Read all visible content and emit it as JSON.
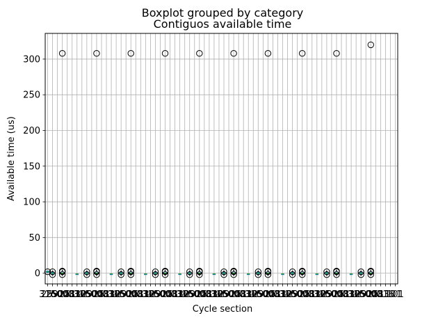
{
  "chart_data": {
    "type": "boxplot",
    "suptitle": "Boxplot grouped by category",
    "title": "Contiguos available time",
    "xlabel": "Cycle section",
    "ylabel": "Available time (us)",
    "ylim": [
      -15,
      336
    ],
    "y_ticks": [
      0,
      50,
      100,
      150,
      200,
      250,
      300
    ],
    "grid": true,
    "x_tick_labels": [
      "316",
      "2591",
      "2500",
      "5000",
      "251",
      "283",
      "316",
      "316",
      "1291",
      "2500",
      "5000",
      "251",
      "283",
      "316",
      "316",
      "1291",
      "2500",
      "5000",
      "251",
      "283",
      "316",
      "316",
      "1291",
      "2500",
      "5000",
      "251",
      "283",
      "316",
      "316",
      "1291",
      "2500",
      "5000",
      "251",
      "283",
      "316",
      "316",
      "1291",
      "2500",
      "5000",
      "251",
      "283",
      "316",
      "316",
      "1291",
      "2500",
      "5000",
      "251",
      "283",
      "316",
      "316",
      "1291",
      "2500",
      "5000",
      "251",
      "283",
      "316",
      "316",
      "1291",
      "2500",
      "5000",
      "251",
      "283",
      "316",
      "316",
      "1291",
      "2500",
      "5000",
      "251",
      "283",
      "316",
      "1101",
      "101"
    ],
    "boxes": [
      {
        "category_index": 0,
        "median": 2,
        "q1": 1,
        "q3": 3,
        "whisker_low": 1,
        "whisker_high": 3,
        "outliers": [
          2
        ]
      },
      {
        "category_index": 1,
        "median": 0,
        "q1": -1,
        "q3": 1,
        "whisker_low": -3,
        "whisker_high": 3,
        "outliers": [
          -2,
          2
        ]
      },
      {
        "category_index": 3,
        "median": 0,
        "q1": -1,
        "q3": 2,
        "whisker_low": -3,
        "whisker_high": 4,
        "outliers": [
          308,
          -2,
          2,
          3
        ]
      },
      {
        "category_index": 6,
        "median": -1,
        "q1": -1,
        "q3": -1,
        "whisker_low": -1,
        "whisker_high": -1,
        "outliers": []
      },
      {
        "category_index": 8,
        "median": 0,
        "q1": -1,
        "q3": 1,
        "whisker_low": -3,
        "whisker_high": 3,
        "outliers": [
          -2,
          2
        ]
      },
      {
        "category_index": 10,
        "median": 0,
        "q1": -1,
        "q3": 2,
        "whisker_low": -3,
        "whisker_high": 4,
        "outliers": [
          308,
          -2,
          2,
          3
        ]
      },
      {
        "category_index": 13,
        "median": -1,
        "q1": -1,
        "q3": -1,
        "whisker_low": -1,
        "whisker_high": -1,
        "outliers": []
      },
      {
        "category_index": 15,
        "median": 0,
        "q1": -1,
        "q3": 1,
        "whisker_low": -3,
        "whisker_high": 3,
        "outliers": [
          -2,
          2
        ]
      },
      {
        "category_index": 17,
        "median": 0,
        "q1": -1,
        "q3": 2,
        "whisker_low": -3,
        "whisker_high": 4,
        "outliers": [
          308,
          -2,
          2,
          3
        ]
      },
      {
        "category_index": 20,
        "median": -1,
        "q1": -1,
        "q3": -1,
        "whisker_low": -1,
        "whisker_high": -1,
        "outliers": []
      },
      {
        "category_index": 22,
        "median": 0,
        "q1": -1,
        "q3": 1,
        "whisker_low": -3,
        "whisker_high": 3,
        "outliers": [
          -2,
          2
        ]
      },
      {
        "category_index": 24,
        "median": 0,
        "q1": -1,
        "q3": 2,
        "whisker_low": -3,
        "whisker_high": 4,
        "outliers": [
          308,
          -2,
          2,
          3
        ]
      },
      {
        "category_index": 27,
        "median": -1,
        "q1": -1,
        "q3": -1,
        "whisker_low": -1,
        "whisker_high": -1,
        "outliers": []
      },
      {
        "category_index": 29,
        "median": 0,
        "q1": -1,
        "q3": 1,
        "whisker_low": -3,
        "whisker_high": 3,
        "outliers": [
          -2,
          2
        ]
      },
      {
        "category_index": 31,
        "median": 0,
        "q1": -1,
        "q3": 2,
        "whisker_low": -3,
        "whisker_high": 4,
        "outliers": [
          308,
          -2,
          2,
          3
        ]
      },
      {
        "category_index": 34,
        "median": -1,
        "q1": -1,
        "q3": -1,
        "whisker_low": -1,
        "whisker_high": -1,
        "outliers": []
      },
      {
        "category_index": 36,
        "median": 0,
        "q1": -1,
        "q3": 1,
        "whisker_low": -3,
        "whisker_high": 3,
        "outliers": [
          -2,
          2
        ]
      },
      {
        "category_index": 38,
        "median": 0,
        "q1": -1,
        "q3": 2,
        "whisker_low": -3,
        "whisker_high": 4,
        "outliers": [
          308,
          -2,
          2,
          3
        ]
      },
      {
        "category_index": 41,
        "median": -1,
        "q1": -1,
        "q3": -1,
        "whisker_low": -1,
        "whisker_high": -1,
        "outliers": []
      },
      {
        "category_index": 43,
        "median": 0,
        "q1": -1,
        "q3": 1,
        "whisker_low": -3,
        "whisker_high": 3,
        "outliers": [
          -2,
          2
        ]
      },
      {
        "category_index": 45,
        "median": 0,
        "q1": -1,
        "q3": 2,
        "whisker_low": -3,
        "whisker_high": 4,
        "outliers": [
          308,
          -2,
          2,
          3
        ]
      },
      {
        "category_index": 48,
        "median": -1,
        "q1": -1,
        "q3": -1,
        "whisker_low": -1,
        "whisker_high": -1,
        "outliers": []
      },
      {
        "category_index": 50,
        "median": 0,
        "q1": -1,
        "q3": 1,
        "whisker_low": -3,
        "whisker_high": 3,
        "outliers": [
          -2,
          2
        ]
      },
      {
        "category_index": 52,
        "median": 0,
        "q1": -1,
        "q3": 2,
        "whisker_low": -3,
        "whisker_high": 4,
        "outliers": [
          308,
          -2,
          2,
          3
        ]
      },
      {
        "category_index": 55,
        "median": -1,
        "q1": -1,
        "q3": -1,
        "whisker_low": -1,
        "whisker_high": -1,
        "outliers": []
      },
      {
        "category_index": 57,
        "median": 0,
        "q1": -1,
        "q3": 1,
        "whisker_low": -3,
        "whisker_high": 3,
        "outliers": [
          -2,
          2
        ]
      },
      {
        "category_index": 59,
        "median": 0,
        "q1": -1,
        "q3": 2,
        "whisker_low": -3,
        "whisker_high": 4,
        "outliers": [
          308,
          -2,
          2,
          3
        ]
      },
      {
        "category_index": 62,
        "median": -1,
        "q1": -1,
        "q3": -1,
        "whisker_low": -1,
        "whisker_high": -1,
        "outliers": []
      },
      {
        "category_index": 64,
        "median": 0,
        "q1": -1,
        "q3": 1,
        "whisker_low": -3,
        "whisker_high": 3,
        "outliers": [
          -2,
          2
        ]
      },
      {
        "category_index": 66,
        "median": 0,
        "q1": -1,
        "q3": 2,
        "whisker_low": -3,
        "whisker_high": 4,
        "outliers": [
          320,
          -2,
          2,
          3
        ]
      }
    ],
    "colors": {
      "box": "#1f77b4",
      "median": "#2ca02c",
      "whisker": "#000000",
      "grid": "#b0b0b0",
      "outlier_edge": "#000000"
    }
  }
}
